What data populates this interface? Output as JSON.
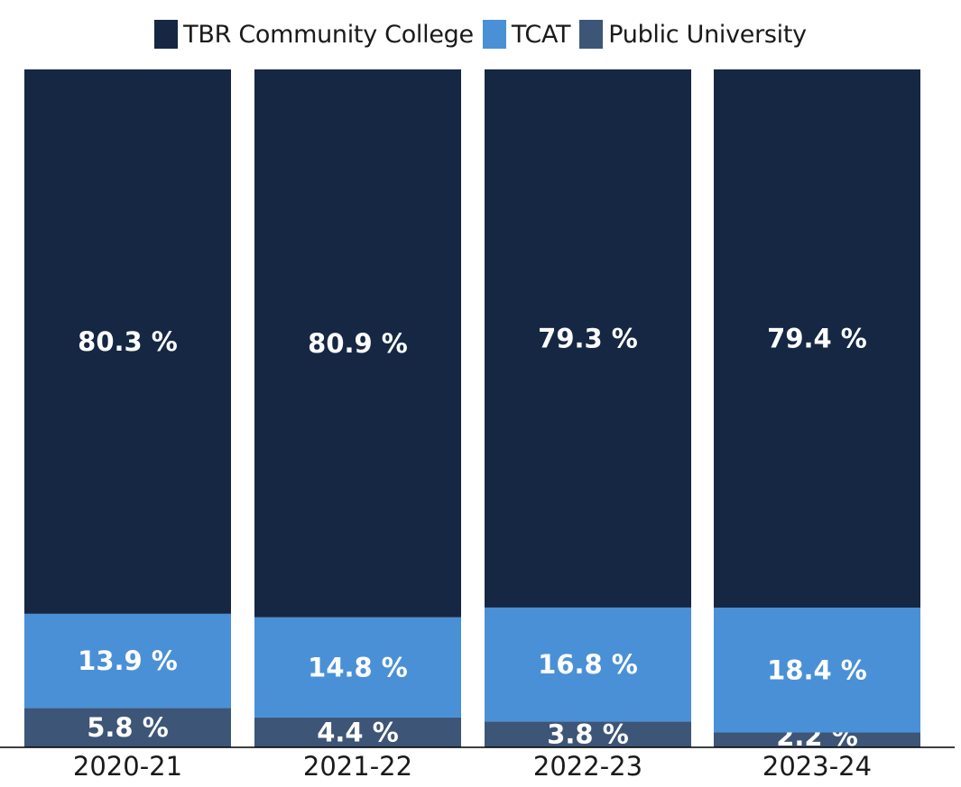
{
  "chart_data": {
    "type": "bar",
    "stacked": true,
    "title": "",
    "xlabel": "",
    "ylabel": "",
    "ylim": [
      0,
      100
    ],
    "categories": [
      "2020-21",
      "2021-22",
      "2022-23",
      "2023-24"
    ],
    "series": [
      {
        "name": "Public University",
        "color": "#3d5577",
        "values": [
          5.8,
          4.4,
          3.8,
          2.2
        ],
        "labels": [
          "5.8 %",
          "4.4 %",
          "3.8 %",
          "2.2 %"
        ]
      },
      {
        "name": "TCAT",
        "color": "#4a90d6",
        "values": [
          13.9,
          14.8,
          16.8,
          18.4
        ],
        "labels": [
          "13.9 %",
          "14.8 %",
          "16.8 %",
          "18.4 %"
        ]
      },
      {
        "name": "TBR Community College",
        "color": "#152743",
        "values": [
          80.3,
          80.9,
          79.3,
          79.4
        ],
        "labels": [
          "80.3 %",
          "80.9 %",
          "79.3 %",
          "79.4 %"
        ]
      }
    ],
    "legend": {
      "position": "top-center",
      "order": [
        "TBR Community College",
        "TCAT",
        "Public University"
      ]
    },
    "grid": false
  }
}
